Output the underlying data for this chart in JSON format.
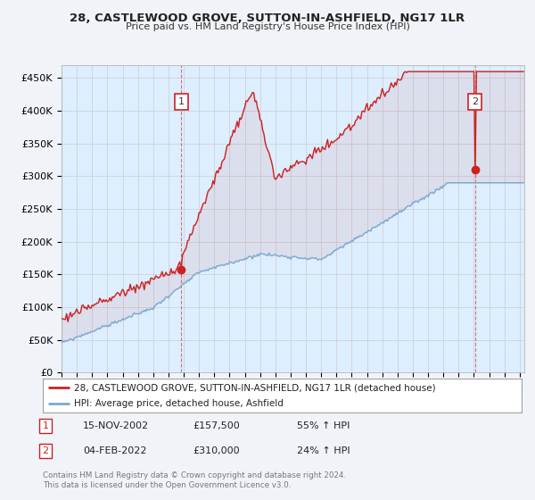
{
  "title": "28, CASTLEWOOD GROVE, SUTTON-IN-ASHFIELD, NG17 1LR",
  "subtitle": "Price paid vs. HM Land Registry's House Price Index (HPI)",
  "red_label": "28, CASTLEWOOD GROVE, SUTTON-IN-ASHFIELD, NG17 1LR (detached house)",
  "blue_label": "HPI: Average price, detached house, Ashfield",
  "annotation1_date": "15-NOV-2002",
  "annotation1_price": "£157,500",
  "annotation1_hpi": "55% ↑ HPI",
  "annotation2_date": "04-FEB-2022",
  "annotation2_price": "£310,000",
  "annotation2_hpi": "24% ↑ HPI",
  "footer": "Contains HM Land Registry data © Crown copyright and database right 2024.\nThis data is licensed under the Open Government Licence v3.0.",
  "red_color": "#cc2222",
  "blue_color": "#7aaad0",
  "bg_fill": "#ddeeff",
  "background_color": "#f0f4f8",
  "grid_color": "#cccccc",
  "ylim": [
    0,
    470000
  ],
  "yticks": [
    0,
    50000,
    100000,
    150000,
    200000,
    250000,
    300000,
    350000,
    400000,
    450000
  ],
  "ytick_labels": [
    "£0",
    "£50K",
    "£100K",
    "£150K",
    "£200K",
    "£250K",
    "£300K",
    "£350K",
    "£400K",
    "£450K"
  ],
  "sale1_t": 2002.833,
  "sale1_val": 157500,
  "sale2_t": 2022.083,
  "sale2_val": 310000
}
